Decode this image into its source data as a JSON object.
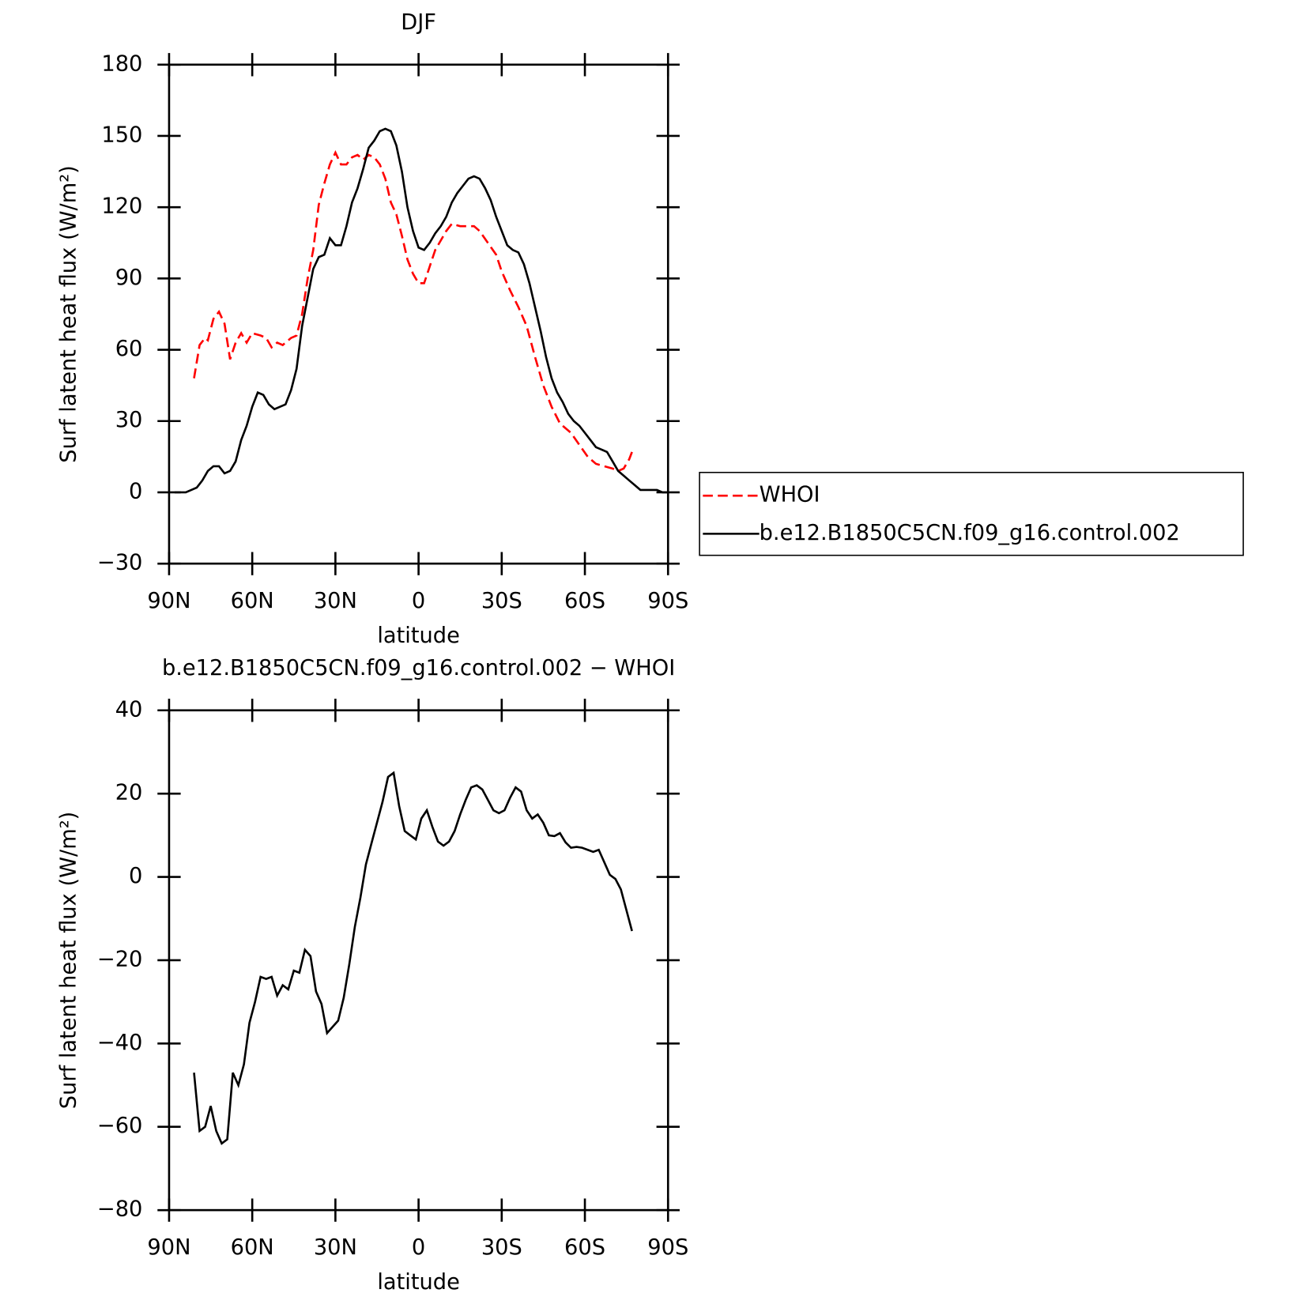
{
  "chart_data": [
    {
      "type": "line",
      "title": "DJF",
      "xlabel": "latitude",
      "ylabel": "Surf latent heat flux (W/m²)",
      "xlim": [
        90,
        -90
      ],
      "ylim": [
        -30,
        180
      ],
      "xticks": [
        {
          "value": 90,
          "label": "90N"
        },
        {
          "value": 60,
          "label": "60N"
        },
        {
          "value": 30,
          "label": "30N"
        },
        0,
        {
          "value": -30,
          "label": "30S"
        },
        {
          "value": -60,
          "label": "60S"
        },
        {
          "value": -90,
          "label": "90S"
        }
      ],
      "yticks": [
        {
          "value": -30,
          "label": "−30"
        },
        0,
        30,
        60,
        90,
        120,
        150,
        180
      ],
      "legend": "right",
      "series": [
        {
          "name": "WHOI",
          "color": "#ff0000",
          "linestyle": "dashed",
          "x": [
            81,
            79,
            77,
            76,
            74,
            72,
            70,
            68,
            66,
            64,
            62,
            60,
            57,
            55,
            53,
            51,
            49,
            46,
            44,
            42,
            40,
            38,
            36,
            34,
            32,
            30,
            28,
            26,
            24,
            22,
            20,
            18,
            16,
            14,
            12,
            10,
            8,
            6,
            4,
            2,
            0,
            -2,
            -4,
            -6,
            -8,
            -10,
            -12,
            -15,
            -20,
            -22,
            -25,
            -28,
            -30,
            -33,
            -36,
            -39,
            -42,
            -45,
            -48,
            -51,
            -55,
            -58,
            -61,
            -64,
            -67,
            -70,
            -72,
            -74,
            -76,
            -77
          ],
          "values": [
            48,
            62,
            65,
            64,
            73,
            76,
            71,
            56,
            63,
            67,
            63,
            67,
            66,
            65,
            61,
            63,
            62,
            65,
            66,
            75,
            90,
            102,
            121,
            130,
            138,
            143,
            138,
            138,
            141,
            142,
            140,
            142,
            141,
            138,
            132,
            122,
            117,
            108,
            98,
            92,
            88,
            88,
            95,
            102,
            106,
            110,
            113,
            112,
            112,
            110,
            105,
            100,
            93,
            85,
            78,
            70,
            57,
            45,
            36,
            29,
            25,
            20,
            15,
            12,
            11,
            10,
            9,
            10,
            14,
            17
          ]
        },
        {
          "name": "b.e12.B1850C5CN.f09_g16.control.002",
          "color": "#000000",
          "linestyle": "solid",
          "x": [
            88,
            86,
            84,
            82,
            80,
            78,
            76,
            74,
            72,
            70,
            68,
            66,
            64,
            62,
            60,
            58,
            56,
            54,
            52,
            50,
            48,
            46,
            44,
            42,
            40,
            38,
            36,
            34,
            32,
            30,
            28,
            26,
            24,
            22,
            20,
            18,
            16,
            14,
            12,
            10,
            8,
            6,
            4,
            2,
            0,
            -2,
            -4,
            -6,
            -8,
            -10,
            -12,
            -14,
            -16,
            -18,
            -20,
            -22,
            -24,
            -26,
            -28,
            -30,
            -32,
            -34,
            -36,
            -38,
            -40,
            -42,
            -44,
            -46,
            -48,
            -50,
            -52,
            -54,
            -56,
            -58,
            -60,
            -62,
            -64,
            -66,
            -68,
            -70,
            -72,
            -74,
            -76,
            -78,
            -80,
            -82,
            -84,
            -86,
            -88,
            -90
          ],
          "values": [
            0,
            0,
            0,
            1,
            2,
            5,
            9,
            11,
            11,
            8,
            9,
            13,
            22,
            28,
            36,
            42,
            41,
            37,
            35,
            36,
            37,
            43,
            52,
            70,
            82,
            94,
            99,
            100,
            107,
            104,
            104,
            112,
            122,
            128,
            136,
            145,
            148,
            152,
            153,
            152,
            146,
            135,
            120,
            110,
            103,
            102,
            105,
            109,
            112,
            116,
            122,
            126,
            129,
            132,
            133,
            132,
            128,
            123,
            116,
            110,
            104,
            102,
            101,
            96,
            88,
            78,
            68,
            57,
            48,
            42,
            38,
            33,
            30,
            28,
            25,
            22,
            19,
            18,
            17,
            13,
            9,
            7,
            5,
            3,
            1,
            1,
            1,
            1,
            0,
            0
          ]
        }
      ]
    },
    {
      "type": "line",
      "title": "b.e12.B1850C5CN.f09_g16.control.002 − WHOI",
      "xlabel": "latitude",
      "ylabel": "Surf latent heat flux (W/m²)",
      "xlim": [
        90,
        -90
      ],
      "ylim": [
        -80,
        40
      ],
      "xticks": [
        {
          "value": 90,
          "label": "90N"
        },
        {
          "value": 60,
          "label": "60N"
        },
        {
          "value": 30,
          "label": "30N"
        },
        0,
        {
          "value": -30,
          "label": "30S"
        },
        {
          "value": -60,
          "label": "60S"
        },
        {
          "value": -90,
          "label": "90S"
        }
      ],
      "yticks": [
        {
          "value": -80,
          "label": "−80"
        },
        {
          "value": -60,
          "label": "−60"
        },
        {
          "value": -40,
          "label": "−40"
        },
        {
          "value": -20,
          "label": "−20"
        },
        0,
        20,
        40
      ],
      "series": [
        {
          "color": "#000000",
          "linestyle": "solid",
          "x": [
            81,
            79,
            77,
            75,
            73,
            71,
            69,
            67,
            65,
            63,
            61,
            59,
            57,
            55,
            53,
            51,
            49,
            47,
            45,
            43,
            41,
            39,
            37,
            35,
            33,
            31,
            29,
            27,
            25,
            23,
            21,
            19,
            17,
            15,
            13,
            11,
            9,
            7,
            5,
            3,
            1,
            -1,
            -3,
            -5,
            -7,
            -9,
            -11,
            -13,
            -15,
            -17,
            -19,
            -21,
            -23,
            -25,
            -27,
            -29,
            -31,
            -33,
            -35,
            -37,
            -39,
            -41,
            -43,
            -45,
            -47,
            -49,
            -51,
            -53,
            -55,
            -57,
            -59,
            -61,
            -63,
            -65,
            -67,
            -69,
            -71,
            -73,
            -75,
            -77
          ],
          "values": [
            -47,
            -61,
            -60,
            -55,
            -61,
            -64,
            -63,
            -47,
            -50,
            -45,
            -35,
            -30,
            -24,
            -24.5,
            -24,
            -28.5,
            -26,
            -27,
            -22.5,
            -23,
            -17.5,
            -19,
            -27.5,
            -30.5,
            -37.5,
            -36,
            -34.5,
            -29,
            -21,
            -12,
            -5,
            3,
            8,
            13,
            18,
            24,
            25,
            17,
            11,
            10,
            9,
            14,
            16,
            12,
            8.5,
            7.5,
            8.5,
            11,
            15,
            18.5,
            21.5,
            22,
            21,
            18.5,
            16,
            15.3,
            16,
            19,
            21.5,
            20.5,
            16,
            14,
            15,
            13,
            10,
            9.8,
            10.5,
            8.3,
            7,
            7.2,
            7,
            6.5,
            6,
            6.5,
            3.5,
            0.5,
            -0.5,
            -3,
            -8,
            -13
          ]
        }
      ]
    }
  ]
}
